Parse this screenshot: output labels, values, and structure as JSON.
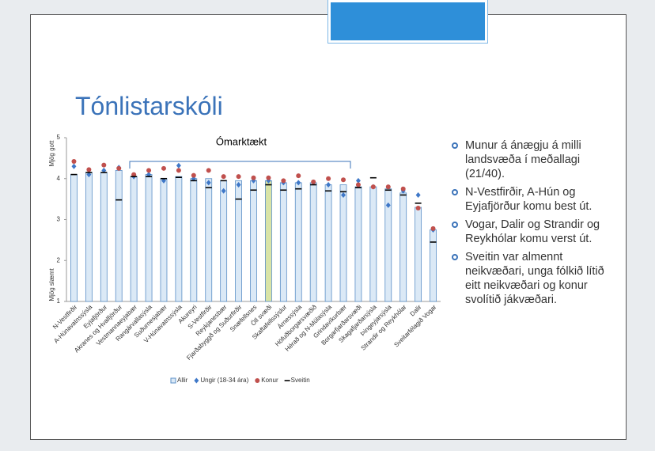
{
  "slide": {
    "title": "Tónlistarskóli",
    "bullets": [
      "Munur á ánægju á milli landsvæða í meðallagi (21/40).",
      "N-Vestfirðir, A-Hún og Eyjafjörður komu best út.",
      "Vogar, Dalir og Strandir og Reykhólar komu verst út.",
      "Sveitin var almennt neikvæðari, unga fólkið lítið eitt neikvæðari og konur svolítið jákvæðari."
    ]
  },
  "chart_data": {
    "type": "bar",
    "annotation": "Ómarktækt",
    "ylabel_top": "Mjög gott",
    "ylabel_bottom": "Mjög slæmt",
    "categories": [
      "N-Vestfirðir",
      "A-Húnavatnssýsla",
      "Eyjafjörður",
      "Akranes og Hvalfjörður",
      "Vestmannaeyjabær",
      "Rangárvallasýsla",
      "Suðurnesjabær",
      "V-Húnavatnssýsla",
      "Akureyri",
      "S-Vestfirðir",
      "Reykjanesbær",
      "Fjarðabyggð og Suðurfirðir",
      "Snæfellsnes",
      "Öll svæði",
      "Skaftafellssýslur",
      "Árnessýsla",
      "Höfuðborgarsvæðið",
      "Hérað og N-Múlasýsla",
      "Grindavíkurbær",
      "Borgarfjarðarsvæði",
      "Skagafjarðarsýsla",
      "Þingeyjarsýsla",
      "Strandir og Reykhólar",
      "Dalir",
      "Sveitarfélagið Vogar"
    ],
    "series": [
      {
        "name": "Allir",
        "marker": "bar",
        "color": "#dbe9f6",
        "colors": [
          "#dbe9f6",
          "#dbe9f6",
          "#dbe9f6",
          "#dbe9f6",
          "#dbe9f6",
          "#dbe9f6",
          "#dbe9f6",
          "#dbe9f6",
          "#dbe9f6",
          "#dbe9f6",
          "#dbe9f6",
          "#dbe9f6",
          "#dbe9f6",
          "#d9e4a6",
          "#dbe9f6",
          "#dbe9f6",
          "#dbe9f6",
          "#dbe9f6",
          "#dbe9f6",
          "#dbe9f6",
          "#dbe9f6",
          "#dbe9f6",
          "#dbe9f6",
          "#dbe9f6",
          "#dbe9f6"
        ],
        "values": [
          4.1,
          4.15,
          4.15,
          4.2,
          4.05,
          4.1,
          4.0,
          4.05,
          4.0,
          4.0,
          3.95,
          3.95,
          3.95,
          3.95,
          3.9,
          3.9,
          3.9,
          3.85,
          3.85,
          3.8,
          3.8,
          3.75,
          3.65,
          3.3,
          2.75
        ]
      },
      {
        "name": "Ungir (18-34 ára)",
        "marker": "diamond",
        "color": "#3f78c8",
        "values": [
          4.3,
          4.1,
          4.2,
          4.27,
          4.05,
          4.1,
          3.95,
          4.32,
          4.0,
          3.9,
          3.7,
          3.85,
          3.95,
          3.95,
          3.9,
          3.9,
          3.9,
          3.85,
          3.6,
          3.95,
          3.8,
          3.35,
          3.7,
          3.6,
          2.75
        ]
      },
      {
        "name": "Konur",
        "marker": "circle",
        "color": "#c0504d",
        "values": [
          4.42,
          4.22,
          4.33,
          4.25,
          4.1,
          4.2,
          4.25,
          4.2,
          4.08,
          4.2,
          4.05,
          4.05,
          4.02,
          4.02,
          3.95,
          4.07,
          3.92,
          4.0,
          3.97,
          3.85,
          3.8,
          3.8,
          3.75,
          3.28,
          2.78
        ]
      },
      {
        "name": "Sveitin",
        "marker": "dash",
        "color": "#000000",
        "values": [
          4.1,
          4.15,
          4.15,
          3.48,
          4.05,
          4.05,
          4.0,
          4.03,
          3.95,
          3.78,
          3.95,
          3.5,
          3.72,
          3.85,
          3.72,
          3.75,
          3.85,
          3.7,
          3.68,
          3.78,
          4.02,
          3.72,
          3.6,
          3.4,
          2.45
        ]
      }
    ],
    "ylim": [
      1,
      5
    ],
    "yticks": [
      1,
      2,
      3,
      4,
      5
    ]
  }
}
